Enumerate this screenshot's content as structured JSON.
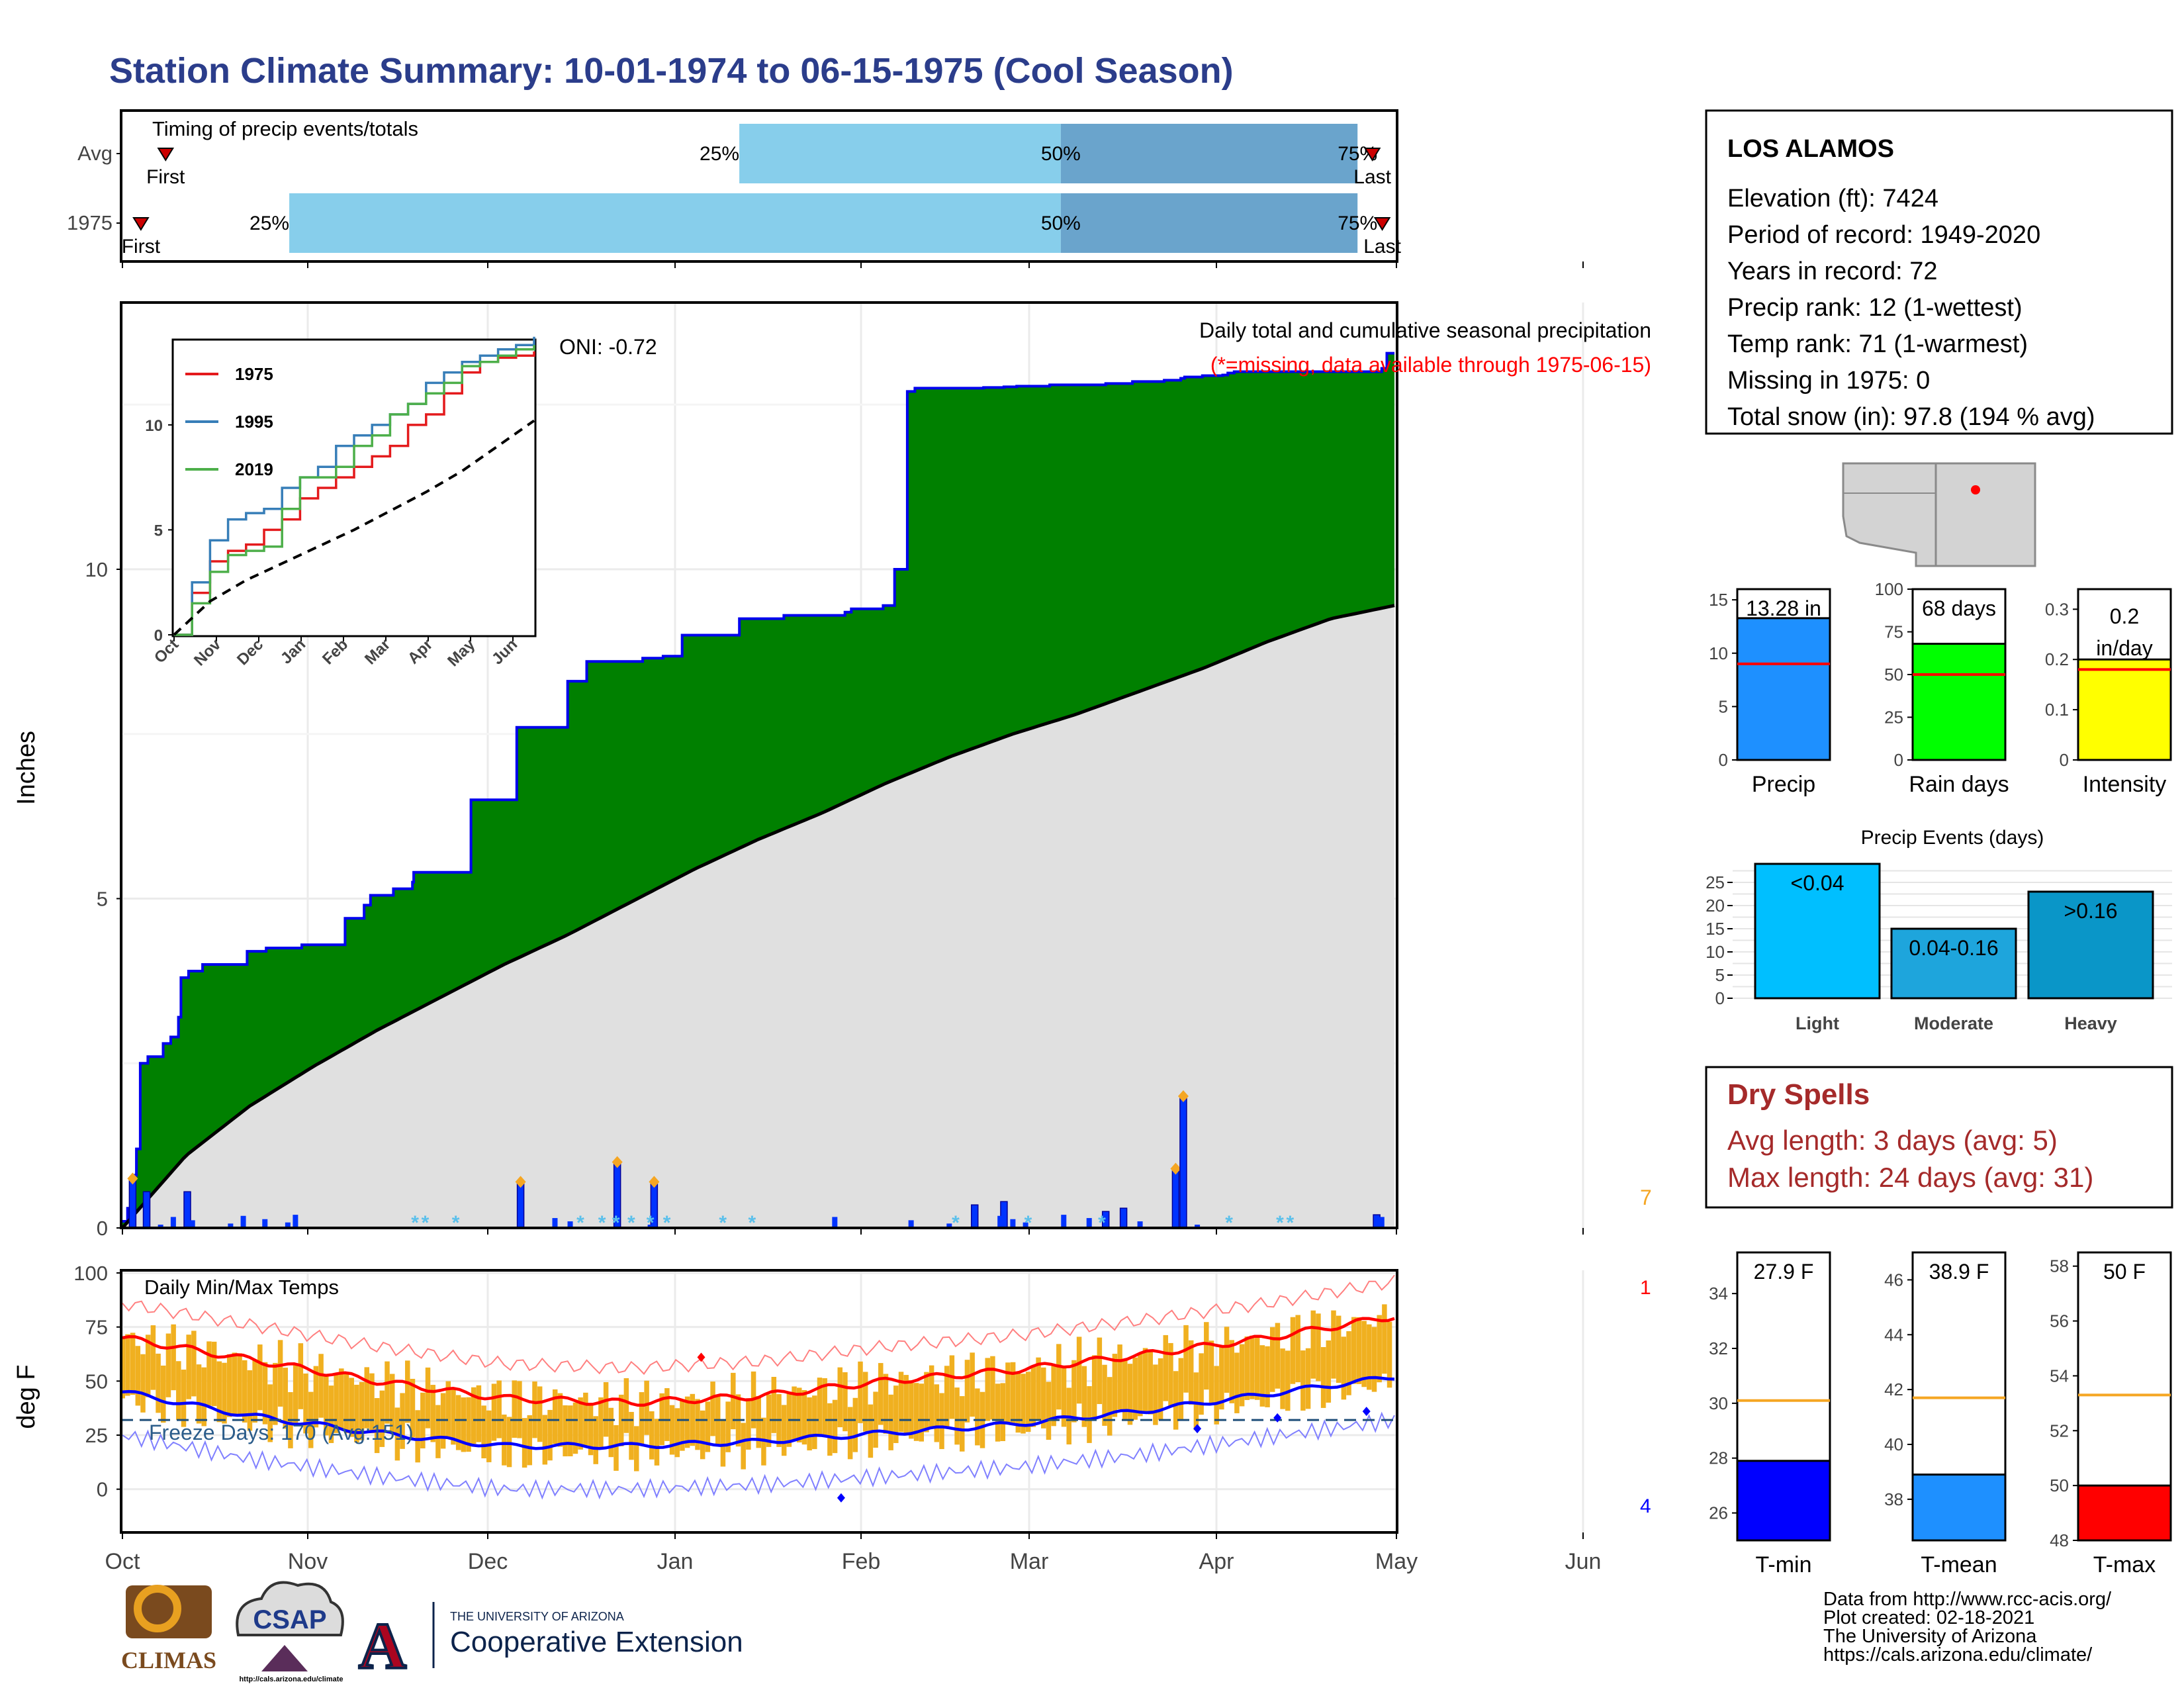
{
  "title": "Station Climate Summary: 10-01-1974 to 06-15-1975 (Cool Season)",
  "colors": {
    "title": "#2b3d8b",
    "precip_fill": "#008000",
    "outline": "#0000ee",
    "normal_fill": "#e0e0e0",
    "tmax": "#ff0000",
    "tmin": "#0000ff",
    "bar": "#f0b020",
    "dry": "#a52a2a"
  },
  "timing": {
    "heading": "Timing of precip events/totals",
    "rows": [
      {
        "label": "Avg",
        "first_label": "First",
        "last_label": "Last",
        "q25": "25%",
        "q50": "50%",
        "q75": "75%",
        "first_day": 9,
        "q25_day": 125,
        "q50_day": 190,
        "q75_day": 250,
        "last_day": 253
      },
      {
        "label": "1975",
        "first_label": "First",
        "last_label": "Last",
        "q25": "25%",
        "q50": "50%",
        "q75": "75%",
        "first_day": 4,
        "q25_day": 34,
        "q50_day": 190,
        "q75_day": 250,
        "last_day": 255
      }
    ]
  },
  "chart_data": [
    {
      "type": "area",
      "title": "Daily total and cumulative seasonal precipitation",
      "subtitle": "(*=missing, data available through 1975-06-15)",
      "ylabel": "Inches",
      "ylim": [
        0,
        14
      ],
      "yticks": [
        0,
        5,
        10
      ],
      "x_months": [
        "Oct",
        "Nov",
        "Dec",
        "Jan",
        "Feb",
        "Mar",
        "Apr",
        "May",
        "Jun"
      ],
      "oni": "ONI: -0.72",
      "cumulative_observed": {
        "x_day": [
          0,
          4,
          7,
          9,
          11,
          14,
          20,
          25,
          32,
          38,
          44,
          46,
          52,
          63,
          98,
          113,
          141,
          151,
          175,
          190,
          195,
          213,
          228,
          229,
          262,
          274,
          280,
          289,
          310,
          350,
          365,
          380,
          409,
          425,
          440,
          485,
          520,
          545,
          568,
          573,
          584,
          598,
          607,
          617,
          623,
          634,
          653,
          677,
          683,
          693,
          703,
          729,
          773,
          781,
          794,
          802,
          819,
          832,
          835,
          849,
          865,
          869,
          874,
          946,
          964,
          984,
          990,
          994,
          1000
        ],
        "y": [
          0.1,
          0.3,
          0.6,
          0.8,
          1.2,
          2.5,
          2.6,
          2.6,
          2.8,
          2.9,
          3.2,
          3.8,
          3.9,
          4.0,
          4.2,
          4.25,
          4.3,
          4.3,
          4.7,
          4.9,
          5.05,
          5.15,
          5.25,
          5.4,
          5.4,
          6.5,
          6.5,
          6.5,
          7.6,
          8.3,
          8.6,
          8.6,
          8.65,
          8.68,
          9.0,
          9.25,
          9.3,
          9.3,
          9.35,
          9.4,
          9.4,
          9.45,
          10.0,
          12.7,
          12.75,
          12.75,
          12.75,
          12.76,
          12.76,
          12.77,
          12.78,
          12.8,
          12.82,
          12.82,
          12.85,
          12.85,
          12.87,
          12.9,
          12.92,
          12.94,
          12.95,
          12.98,
          13.0,
          13.0,
          13.0,
          13.0,
          13.05,
          13.28,
          13.28
        ]
      },
      "cumulative_average": {
        "x_day": [
          0,
          50,
          100,
          150,
          200,
          250,
          300,
          350,
          400,
          450,
          500,
          550,
          600,
          650,
          700,
          750,
          800,
          850,
          900,
          950,
          1000
        ],
        "y": [
          0,
          1.1,
          1.85,
          2.45,
          3.0,
          3.5,
          4.0,
          4.45,
          4.95,
          5.45,
          5.9,
          6.3,
          6.75,
          7.15,
          7.5,
          7.8,
          8.15,
          8.5,
          8.9,
          9.25,
          9.45
        ]
      },
      "daily_notable": [
        {
          "x_day": 8,
          "y": 0.75
        },
        {
          "x_day": 19,
          "y": 0.55
        },
        {
          "x_day": 51,
          "y": 0.55
        },
        {
          "x_day": 313,
          "y": 0.7
        },
        {
          "x_day": 389,
          "y": 1.0
        },
        {
          "x_day": 418,
          "y": 0.7
        },
        {
          "x_day": 670,
          "y": 0.35
        },
        {
          "x_day": 693,
          "y": 0.4
        },
        {
          "x_day": 773,
          "y": 0.25
        },
        {
          "x_day": 787,
          "y": 0.3
        },
        {
          "x_day": 828,
          "y": 0.9
        },
        {
          "x_day": 834,
          "y": 2.0
        },
        {
          "x_day": 986,
          "y": 0.2
        }
      ],
      "extreme_count": "7"
    },
    {
      "type": "line",
      "title": "Daily Min/Max Temps",
      "ylabel": "deg F",
      "ylim": [
        -20,
        100
      ],
      "yticks": [
        0,
        25,
        50,
        75,
        100
      ],
      "freeze_days": "Freeze Days: 170 (Avg:151)",
      "freeze_line_f": 32,
      "normal_high": {
        "x_day": [
          0,
          100,
          200,
          300,
          400,
          500,
          600,
          700,
          800,
          900,
          1000
        ],
        "y": [
          70,
          60,
          50,
          42,
          40,
          43,
          50,
          55,
          62,
          70,
          80
        ]
      },
      "normal_low": {
        "x_day": [
          0,
          100,
          200,
          300,
          400,
          500,
          600,
          700,
          800,
          900,
          1000
        ],
        "y": [
          45,
          34,
          26,
          20,
          20,
          22,
          26,
          30,
          36,
          44,
          52
        ]
      },
      "record_high_count": "1",
      "record_low_count": "4"
    },
    {
      "type": "bar",
      "categories": [
        "Precip",
        "Rain days",
        "Intensity"
      ],
      "values": [
        13.28,
        68,
        0.2
      ],
      "averages": [
        9.0,
        50,
        0.18
      ],
      "value_labels": [
        "13.28 in",
        "68 days",
        "0.2 in/day"
      ],
      "ylims": [
        [
          0,
          16
        ],
        [
          0,
          100
        ],
        [
          0,
          0.34
        ]
      ],
      "yticks": [
        [
          0,
          5,
          10,
          15
        ],
        [
          0,
          25,
          50,
          75,
          100
        ],
        [
          0.0,
          0.1,
          0.2,
          0.3
        ]
      ]
    },
    {
      "type": "bar",
      "title": "Precip Events (days)",
      "categories": [
        "Light",
        "Moderate",
        "Heavy"
      ],
      "values": [
        29,
        15,
        23
      ],
      "value_labels": [
        "<0.04",
        "0.04-0.16",
        ">0.16"
      ],
      "ylim": [
        0,
        29
      ],
      "yticks": [
        0,
        5,
        10,
        15,
        20,
        25
      ]
    },
    {
      "type": "bar",
      "categories": [
        "T-min",
        "T-mean",
        "T-max"
      ],
      "values": [
        27.9,
        38.9,
        50
      ],
      "averages": [
        30.1,
        41.7,
        53.3
      ],
      "value_labels": [
        "27.9 F",
        "38.9 F",
        "50 F"
      ],
      "ylims": [
        [
          25,
          35.5
        ],
        [
          36.5,
          47
        ],
        [
          48,
          58.5
        ]
      ],
      "yticks": [
        [
          26,
          28,
          30,
          32,
          34
        ],
        [
          38,
          40,
          42,
          44,
          46
        ],
        [
          48,
          50,
          52,
          54,
          56,
          58
        ]
      ]
    },
    {
      "type": "line",
      "series": [
        {
          "name": "1975",
          "x_day": [
            0,
            50,
            100,
            150,
            200,
            250,
            300,
            350,
            400,
            450,
            500,
            550,
            600,
            650,
            700,
            750,
            800,
            850,
            900,
            950,
            1000
          ],
          "y": [
            0,
            2.0,
            3.5,
            4.0,
            4.3,
            5.0,
            5.5,
            6.5,
            7.0,
            7.5,
            8.0,
            8.5,
            9.0,
            10.0,
            10.5,
            11.5,
            12.5,
            13.0,
            13.2,
            13.3,
            13.5
          ]
        },
        {
          "name": "1995",
          "x_day": [
            0,
            50,
            100,
            150,
            200,
            250,
            300,
            350,
            400,
            450,
            500,
            550,
            600,
            650,
            700,
            750,
            800,
            850,
            900,
            950,
            1000
          ],
          "y": [
            0,
            2.5,
            4.5,
            5.5,
            5.8,
            6.0,
            7.0,
            7.5,
            8.0,
            9.0,
            9.5,
            10.0,
            10.5,
            11.0,
            12.0,
            12.5,
            13.0,
            13.3,
            13.6,
            13.8,
            14.2
          ]
        },
        {
          "name": "2019",
          "x_day": [
            0,
            50,
            100,
            150,
            200,
            250,
            300,
            350,
            400,
            450,
            500,
            550,
            600,
            650,
            700,
            750,
            800,
            850,
            900,
            950,
            1000
          ],
          "y": [
            0,
            1.5,
            3.0,
            3.8,
            4.0,
            4.2,
            6.0,
            7.5,
            7.5,
            8.0,
            9.0,
            9.5,
            10.5,
            11.0,
            11.5,
            12.0,
            12.8,
            13.0,
            13.3,
            13.6,
            13.8
          ]
        }
      ],
      "average": {
        "x_day": [
          0,
          100,
          200,
          300,
          400,
          500,
          600,
          700,
          800,
          900,
          1000
        ],
        "y": [
          0,
          1.6,
          2.6,
          3.4,
          4.2,
          5.0,
          5.9,
          6.8,
          7.8,
          9.0,
          10.2
        ]
      },
      "ylim": [
        0,
        14
      ],
      "yticks": [
        0,
        5,
        10
      ],
      "x_months": [
        "Oct",
        "Nov",
        "Dec",
        "Jan",
        "Feb",
        "Mar",
        "Apr",
        "May",
        "Jun"
      ]
    }
  ],
  "station": {
    "name": "LOS ALAMOS",
    "lines": [
      "Elevation (ft): 7424",
      "Period of record: 1949-2020",
      "Years in record: 72",
      "Precip rank: 12 (1-wettest)",
      "Temp rank: 71 (1-warmest)",
      "Missing in 1975: 0",
      "Total snow (in): 97.8 (194 % avg)"
    ]
  },
  "dry_spells": {
    "heading": "Dry Spells",
    "avg": "Avg length: 3 days (avg: 5)",
    "max": "Max length: 24 days (avg: 31)"
  },
  "footer": {
    "lines": [
      "Data from http://www.rcc-acis.org/",
      "Plot created: 02-18-2021",
      "The University of Arizona",
      "https://cals.arizona.edu/climate/"
    ],
    "logo_climas": "CLIMAS",
    "logo_csap": "CSAP",
    "logo_csap_url": "http://cals.arizona.edu/climate",
    "ua_small": "THE UNIVERSITY OF ARIZONA",
    "ua_big": "Cooperative Extension"
  }
}
